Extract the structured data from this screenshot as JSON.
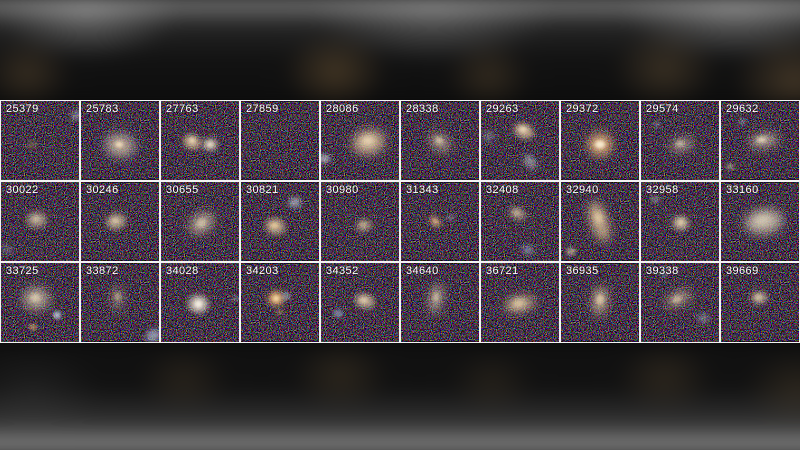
{
  "figure": {
    "description": "Letterboxed frame showing a 3x10 grid of dark sky galaxy cutout images, each labeled with a catalog ID in its top-left corner",
    "rows": 3,
    "cols": 10,
    "border_color": "#f2f2f2",
    "label_color": "#ffffff",
    "sky_background_color": "#06060b",
    "blob_fields": [
      "x_pct",
      "y_pct",
      "rx_px",
      "ry_px",
      "angle_deg",
      "color",
      "opacity"
    ],
    "cells": [
      {
        "id": "25379",
        "blobs": [
          [
            40,
            55,
            5,
            4,
            0,
            "#8a7a60",
            0.5
          ],
          [
            97,
            18,
            7,
            4,
            -30,
            "#b9c4d4",
            0.55
          ]
        ]
      },
      {
        "id": "25783",
        "blobs": [
          [
            50,
            56,
            17,
            13,
            10,
            "#9fa8bc",
            0.4
          ],
          [
            50,
            56,
            12,
            9,
            10,
            "#d6bb97",
            0.75
          ],
          [
            49,
            55,
            4,
            3,
            0,
            "#f3dfc0",
            0.95
          ]
        ]
      },
      {
        "id": "27763",
        "blobs": [
          [
            40,
            52,
            9,
            7,
            20,
            "#d6bb97",
            0.8
          ],
          [
            40,
            50,
            3,
            3,
            0,
            "#f0ddba",
            0.9
          ],
          [
            63,
            55,
            7,
            6,
            0,
            "#d9cdb8",
            0.85
          ],
          [
            63,
            55,
            3,
            2,
            0,
            "#f0e6d0",
            0.9
          ]
        ]
      },
      {
        "id": "27859",
        "blobs": []
      },
      {
        "id": "28086",
        "blobs": [
          [
            61,
            52,
            16,
            12,
            -10,
            "#dec29c",
            0.8
          ],
          [
            60,
            50,
            6,
            4,
            0,
            "#f3e0bd",
            0.9
          ],
          [
            4,
            73,
            6,
            4,
            0,
            "#c9d2de",
            0.8
          ]
        ]
      },
      {
        "id": "28338",
        "blobs": [
          [
            50,
            52,
            11,
            7,
            35,
            "#cdbb9e",
            0.75
          ],
          [
            49,
            50,
            4,
            3,
            35,
            "#e8d6b4",
            0.7
          ]
        ]
      },
      {
        "id": "29263",
        "blobs": [
          [
            55,
            38,
            10,
            7,
            25,
            "#d9c09c",
            0.8
          ],
          [
            54,
            36,
            4,
            3,
            0,
            "#eedcba",
            0.85
          ],
          [
            63,
            77,
            8,
            5,
            55,
            "#b9c0c9",
            0.6
          ],
          [
            10,
            45,
            6,
            5,
            0,
            "#9aa0ad",
            0.5
          ]
        ]
      },
      {
        "id": "29372",
        "blobs": [
          [
            50,
            55,
            12,
            11,
            0,
            "#e2b27c",
            0.9
          ],
          [
            50,
            55,
            5,
            4,
            0,
            "#f6e8cd",
            1
          ]
        ]
      },
      {
        "id": "29574",
        "blobs": [
          [
            52,
            55,
            11,
            6,
            -15,
            "#cfc0a8",
            0.7
          ],
          [
            50,
            54,
            4,
            3,
            -15,
            "#e4d4b8",
            0.6
          ],
          [
            20,
            30,
            4,
            3,
            0,
            "#93a5bd",
            0.4
          ]
        ]
      },
      {
        "id": "29632",
        "blobs": [
          [
            55,
            50,
            14,
            6,
            -8,
            "#d5c6ac",
            0.8
          ],
          [
            52,
            49,
            5,
            3,
            -8,
            "#ecdcbe",
            0.8
          ],
          [
            12,
            83,
            4,
            3,
            0,
            "#c4b694",
            0.6
          ],
          [
            27,
            26,
            4,
            3,
            0,
            "#9fb0c5",
            0.45
          ]
        ]
      },
      {
        "id": "30022",
        "blobs": [
          [
            46,
            48,
            10,
            8,
            0,
            "#c9b89c",
            0.65
          ],
          [
            45,
            47,
            4,
            3,
            0,
            "#e0d0b0",
            0.6
          ],
          [
            8,
            85,
            6,
            5,
            0,
            "#8e97a6",
            0.4
          ]
        ]
      },
      {
        "id": "30246",
        "blobs": [
          [
            45,
            50,
            10,
            8,
            -10,
            "#cebb9a",
            0.7
          ],
          [
            44,
            49,
            4,
            3,
            0,
            "#e6d4b2",
            0.7
          ]
        ]
      },
      {
        "id": "30655",
        "blobs": [
          [
            52,
            52,
            13,
            9,
            -35,
            "#cfc0a6",
            0.75
          ],
          [
            52,
            52,
            5,
            4,
            -35,
            "#e2d2b4",
            0.6
          ]
        ]
      },
      {
        "id": "30821",
        "blobs": [
          [
            44,
            56,
            10,
            8,
            10,
            "#d2ba94",
            0.75
          ],
          [
            43,
            55,
            4,
            3,
            0,
            "#eccf9e",
            0.85
          ],
          [
            69,
            26,
            6,
            5,
            0,
            "#c3cdd9",
            0.7
          ]
        ]
      },
      {
        "id": "30980",
        "blobs": [
          [
            55,
            55,
            8,
            6,
            -10,
            "#cab794",
            0.65
          ],
          [
            54,
            54,
            3,
            2,
            0,
            "#e2cfa8",
            0.6
          ]
        ]
      },
      {
        "id": "31343",
        "blobs": [
          [
            44,
            50,
            7,
            4,
            45,
            "#d8a878",
            0.75
          ],
          [
            44,
            50,
            3,
            2,
            45,
            "#eec896",
            0.7
          ],
          [
            64,
            45,
            5,
            3,
            -20,
            "#9aa5b5",
            0.4
          ]
        ]
      },
      {
        "id": "32408",
        "blobs": [
          [
            47,
            40,
            9,
            6,
            25,
            "#c9b698",
            0.6
          ],
          [
            46,
            39,
            4,
            3,
            25,
            "#dcc9a4",
            0.5
          ],
          [
            60,
            86,
            6,
            4,
            10,
            "#a9bcd4",
            0.6
          ]
        ]
      },
      {
        "id": "32940",
        "blobs": [
          [
            49,
            50,
            21,
            8,
            72,
            "#d7bb93",
            0.85
          ],
          [
            48,
            45,
            6,
            4,
            72,
            "#eed7ae",
            0.8
          ],
          [
            13,
            88,
            5,
            4,
            0,
            "#d3c3a4",
            0.6
          ]
        ]
      },
      {
        "id": "32958",
        "blobs": [
          [
            51,
            52,
            8,
            7,
            0,
            "#d6c4a4",
            0.8
          ],
          [
            51,
            51,
            3,
            3,
            0,
            "#ecd9b4",
            0.7
          ],
          [
            18,
            22,
            5,
            4,
            0,
            "#9aa3b0",
            0.45
          ]
        ]
      },
      {
        "id": "33160",
        "blobs": [
          [
            55,
            50,
            19,
            12,
            -8,
            "#cfc5b0",
            0.8
          ],
          [
            53,
            48,
            8,
            5,
            -8,
            "#e0d6bd",
            0.6
          ]
        ]
      },
      {
        "id": "33725",
        "blobs": [
          [
            45,
            45,
            13,
            11,
            0,
            "#cfc2a9",
            0.75
          ],
          [
            44,
            44,
            5,
            4,
            0,
            "#e6d6b6",
            0.65
          ],
          [
            72,
            66,
            4,
            4,
            0,
            "#c3cede",
            0.8
          ],
          [
            41,
            81,
            4,
            3,
            0,
            "#d8b070",
            0.7
          ]
        ]
      },
      {
        "id": "33872",
        "blobs": [
          [
            47,
            45,
            11,
            5,
            85,
            "#c6b79c",
            0.6
          ],
          [
            47,
            42,
            4,
            3,
            85,
            "#dcc9a6",
            0.55
          ],
          [
            93,
            92,
            8,
            6,
            -30,
            "#aebdd2",
            0.7
          ]
        ]
      },
      {
        "id": "34028",
        "blobs": [
          [
            48,
            52,
            10,
            9,
            0,
            "#d8cfc0",
            0.8
          ],
          [
            48,
            52,
            4,
            4,
            0,
            "#f2ece0",
            1
          ],
          [
            95,
            45,
            4,
            3,
            0,
            "#9aa4b2",
            0.4
          ]
        ]
      },
      {
        "id": "34203",
        "blobs": [
          [
            45,
            45,
            8,
            7,
            0,
            "#e0aa6e",
            0.9
          ],
          [
            45,
            45,
            3,
            3,
            0,
            "#f4dca8",
            1
          ],
          [
            58,
            42,
            5,
            4,
            0,
            "#aab4c2",
            0.5
          ],
          [
            50,
            62,
            4,
            3,
            0,
            "#b49468",
            0.55
          ]
        ]
      },
      {
        "id": "34352",
        "blobs": [
          [
            56,
            48,
            10,
            7,
            15,
            "#d5c0a0",
            0.75
          ],
          [
            55,
            47,
            4,
            3,
            0,
            "#ead8b6",
            0.7
          ],
          [
            22,
            64,
            5,
            4,
            0,
            "#9db0ca",
            0.6
          ]
        ]
      },
      {
        "id": "34640",
        "blobs": [
          [
            45,
            45,
            14,
            6,
            100,
            "#cdbfa6",
            0.75
          ],
          [
            45,
            43,
            5,
            3,
            100,
            "#e0d0b2",
            0.6
          ]
        ]
      },
      {
        "id": "36721",
        "blobs": [
          [
            50,
            52,
            15,
            7,
            -12,
            "#d6bd97",
            0.85
          ],
          [
            48,
            51,
            6,
            4,
            -12,
            "#ecd7ae",
            0.8
          ]
        ]
      },
      {
        "id": "36935",
        "blobs": [
          [
            50,
            48,
            14,
            7,
            95,
            "#d3bd9b",
            0.8
          ],
          [
            50,
            46,
            5,
            4,
            95,
            "#e8d4ae",
            0.7
          ]
        ]
      },
      {
        "id": "39338",
        "blobs": [
          [
            48,
            45,
            13,
            6,
            -25,
            "#cfbc9c",
            0.75
          ],
          [
            46,
            46,
            5,
            3,
            -25,
            "#e2cead",
            0.65
          ],
          [
            80,
            70,
            6,
            4,
            10,
            "#a8b6c8",
            0.55
          ],
          [
            30,
            15,
            2,
            2,
            0,
            "#7fa0d8",
            0.8
          ]
        ]
      },
      {
        "id": "39669",
        "blobs": [
          [
            49,
            44,
            8,
            6,
            0,
            "#d2c0a2",
            0.75
          ],
          [
            48,
            43,
            3,
            3,
            0,
            "#e8d6b4",
            0.6
          ]
        ]
      }
    ]
  }
}
